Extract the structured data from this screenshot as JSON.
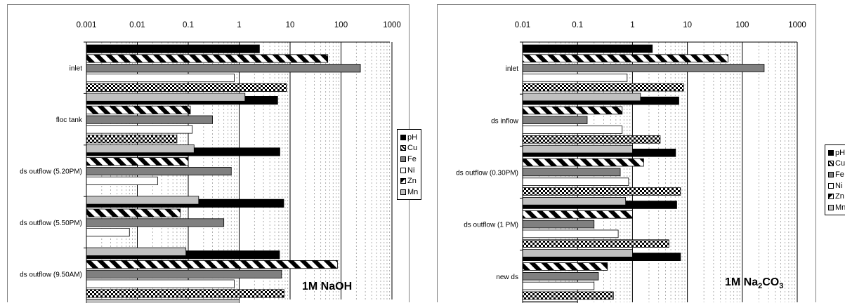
{
  "chart_data": [
    {
      "type": "bar",
      "orientation": "horizontal",
      "x_scale": "log",
      "xlim": [
        0.001,
        1000
      ],
      "x_tick_labels": [
        "0.001",
        "0.01",
        "0.1",
        "1",
        "10",
        "100",
        "1000"
      ],
      "grid": true,
      "legend_position": "right",
      "annotation": "1M NaOH",
      "categories": [
        "inlet",
        "floc tank",
        "ds outflow  (5.20PM)",
        "ds outflow  (5.50PM)",
        "ds outflow  (9.50AM)"
      ],
      "series": [
        {
          "name": "pH",
          "values": [
            2.5,
            5.7,
            6.3,
            7.5,
            6.2
          ]
        },
        {
          "name": "Cu",
          "values": [
            55,
            0.11,
            0.1,
            0.07,
            85
          ]
        },
        {
          "name": "Fe",
          "values": [
            240,
            0.3,
            0.7,
            0.5,
            6.8
          ]
        },
        {
          "name": "Ni",
          "values": [
            0.8,
            0.12,
            0.025,
            0.007,
            0.8
          ]
        },
        {
          "name": "Zn",
          "values": [
            8.5,
            0.06,
            0.001,
            0.001,
            7.6
          ]
        },
        {
          "name": "Mn",
          "values": [
            1.3,
            0.13,
            0.16,
            0.09,
            1.0
          ]
        }
      ]
    },
    {
      "type": "bar",
      "orientation": "horizontal",
      "x_scale": "log",
      "xlim": [
        0.01,
        1000
      ],
      "x_tick_labels": [
        "0.01",
        "0.1",
        "1",
        "10",
        "100",
        "1000"
      ],
      "grid": true,
      "legend_position": "right",
      "annotation": "1M Na₂CO₃",
      "categories": [
        "inlet",
        "ds inflow",
        "ds outflow  (0.30PM)",
        "ds outflow  (1 PM)",
        "new ds"
      ],
      "series": [
        {
          "name": "pH",
          "values": [
            2.3,
            7.0,
            6.1,
            6.4,
            7.5
          ]
        },
        {
          "name": "Cu",
          "values": [
            55,
            0.65,
            1.6,
            1.0,
            0.35
          ]
        },
        {
          "name": "Fe",
          "values": [
            250,
            0.15,
            0.6,
            0.2,
            0.24
          ]
        },
        {
          "name": "Ni",
          "values": [
            0.8,
            0.65,
            0.85,
            0.55,
            0.2
          ]
        },
        {
          "name": "Zn",
          "values": [
            8.5,
            3.2,
            7.5,
            4.6,
            0.45
          ]
        },
        {
          "name": "Mn",
          "values": [
            1.4,
            1.0,
            0.75,
            1.0,
            0.1
          ]
        }
      ]
    }
  ],
  "series_style": [
    {
      "name": "pH",
      "fill": "#000000",
      "pattern": "solid"
    },
    {
      "name": "Cu",
      "fill": "#000000",
      "pattern": "diagonal-stripes"
    },
    {
      "name": "Fe",
      "fill": "#808080",
      "pattern": "solid"
    },
    {
      "name": "Ni",
      "fill": "#ffffff",
      "pattern": "solid"
    },
    {
      "name": "Zn",
      "fill": "#000000",
      "pattern": "checker"
    },
    {
      "name": "Mn",
      "fill": "#c0c0c0",
      "pattern": "solid"
    }
  ],
  "labels": {
    "tag_0_main": "1M NaOH",
    "tag_1_prefix": "1M Na",
    "tag_1_sub": "2",
    "tag_1_suffix": "CO",
    "tag_1_sub2": "3"
  }
}
